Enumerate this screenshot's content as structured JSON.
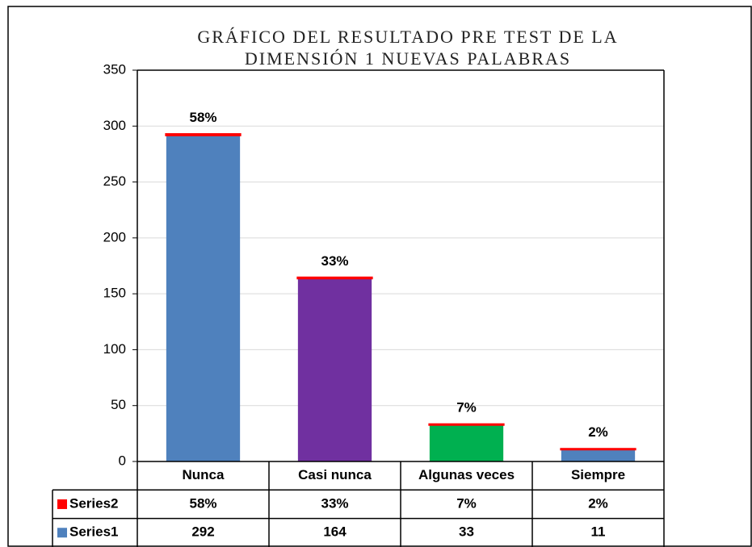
{
  "chart_data": {
    "type": "stacked_bar",
    "title": [
      "GRÁFICO DEL RESULTADO PRE TEST DE LA",
      "DIMENSIÓN 1 NUEVAS PALABRAS"
    ],
    "categories": [
      "Nunca",
      "Casi nunca",
      "Algunas veces",
      "Siempre"
    ],
    "series": [
      {
        "name": "Series1",
        "color": "#4f81bd",
        "colors": [
          "#4f81bd",
          "#7030a0",
          "#00b050",
          "#4f81bd"
        ],
        "values": [
          292,
          164,
          33,
          11
        ]
      },
      {
        "name": "Series2",
        "color": "#ff0000",
        "values": [
          0.58,
          0.33,
          0.07,
          0.02
        ],
        "value_labels": [
          "58%",
          "33%",
          "7%",
          "2%"
        ]
      }
    ],
    "ylim": [
      0,
      350
    ],
    "yticks": [
      0,
      50,
      100,
      150,
      200,
      250,
      300,
      350
    ],
    "grid": true,
    "data_table": true
  }
}
